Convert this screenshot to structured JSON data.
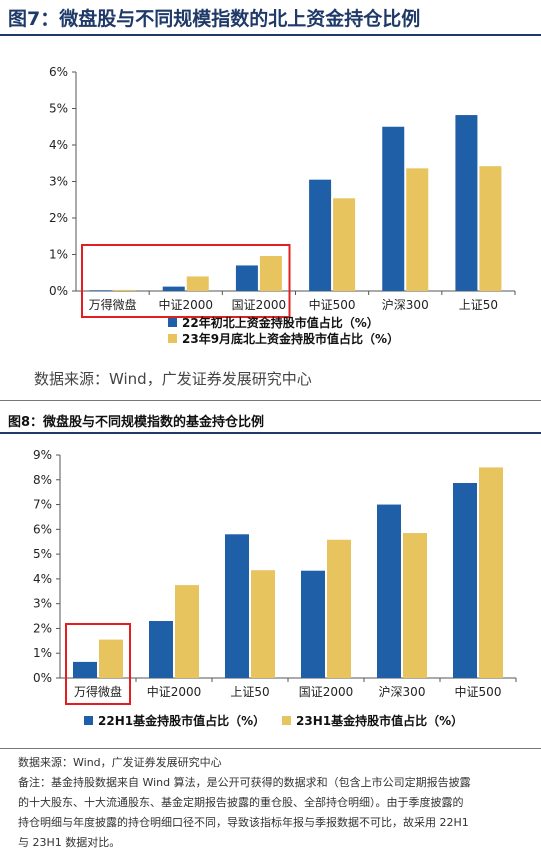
{
  "figure1": {
    "title": "图7：微盘股与不同规模指数的北上资金持仓比例",
    "source": "数据来源：Wind，广发证券发展研究中心"
  },
  "figure2": {
    "title": "图8：微盘股与不同规模指数的基金持仓比例",
    "source": "数据来源：Wind，广发证券发展研究中心",
    "notes": [
      "备注：基金持股数据来自 Wind 算法，是公开可获得的数据求和（包含上市公司定期报告披露",
      "的十大股东、十大流通股东、基金定期报告披露的重仓股、全部持仓明细）。由于季度披露的",
      "持仓明细与年度披露的持仓明细口径不同，导致该指标年报与季报数据不可比，故采用 22H1",
      "与 23H1 数据对比。"
    ]
  },
  "colors": {
    "series1": "#1f5fa8",
    "series2": "#e8c45f",
    "highlight": "#e02020",
    "axis": "#555555"
  },
  "chart_data": [
    {
      "type": "bar",
      "categories": [
        "万得微盘",
        "中证2000",
        "国证2000",
        "中证500",
        "沪深300",
        "上证50"
      ],
      "series": [
        {
          "name": "22年初北上资金持股市值占比（%）",
          "values": [
            0.02,
            0.12,
            0.7,
            3.05,
            4.5,
            4.82
          ]
        },
        {
          "name": "23年9月底北上资金持股市值占比（%）",
          "values": [
            0.03,
            0.4,
            0.96,
            2.54,
            3.36,
            3.42
          ]
        }
      ],
      "ylim": [
        0,
        6
      ],
      "yticks": [
        "0%",
        "1%",
        "2%",
        "3%",
        "4%",
        "5%",
        "6%"
      ],
      "legend": "bottom",
      "highlighted_categories": [
        "万得微盘",
        "中证2000",
        "国证2000"
      ]
    },
    {
      "type": "bar",
      "categories": [
        "万得微盘",
        "中证2000",
        "上证50",
        "国证2000",
        "沪深300",
        "中证500"
      ],
      "series": [
        {
          "name": "22H1基金持股市值占比（%）",
          "values": [
            0.65,
            2.3,
            5.8,
            4.33,
            7.0,
            7.87
          ]
        },
        {
          "name": "23H1基金持股市值占比（%）",
          "values": [
            1.55,
            3.75,
            4.35,
            5.58,
            5.85,
            8.5
          ]
        }
      ],
      "ylim": [
        0,
        9
      ],
      "yticks": [
        "0%",
        "1%",
        "2%",
        "3%",
        "4%",
        "5%",
        "6%",
        "7%",
        "8%",
        "9%"
      ],
      "legend": "bottom",
      "highlighted_categories": [
        "万得微盘"
      ]
    }
  ]
}
